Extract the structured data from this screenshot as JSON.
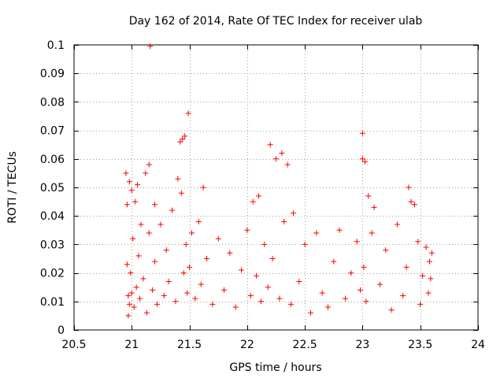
{
  "chart_data": {
    "type": "scatter",
    "title": "Day 162 of 2014, Rate Of TEC Index for receiver ulab",
    "xlabel": "GPS time / hours",
    "ylabel": "ROTI / TECUs",
    "xlim": [
      20.5,
      24
    ],
    "ylim": [
      0,
      0.1
    ],
    "xticks": [
      20.5,
      21,
      21.5,
      22,
      22.5,
      23,
      23.5,
      24
    ],
    "xtick_labels": [
      "20.5",
      "21",
      "21.5",
      "22",
      "22.5",
      "23",
      "23.5",
      "24"
    ],
    "yticks": [
      0,
      0.01,
      0.02,
      0.03,
      0.04,
      0.05,
      0.06,
      0.07,
      0.08,
      0.09,
      0.1
    ],
    "ytick_labels": [
      "0",
      "0.01",
      "0.02",
      "0.03",
      "0.04",
      "0.05",
      "0.06",
      "0.07",
      "0.08",
      "0.09",
      "0.1"
    ],
    "grid": true,
    "marker": "+",
    "colors": {
      "series": "#ff0000",
      "grid": "#a0a0a0",
      "axis": "#000000"
    },
    "series": [
      {
        "name": "ROTI",
        "x": [
          20.95,
          20.96,
          20.96,
          20.97,
          20.97,
          20.98,
          20.98,
          20.99,
          21.0,
          21.0,
          21.01,
          21.02,
          21.03,
          21.04,
          21.05,
          21.06,
          21.07,
          21.08,
          21.1,
          21.12,
          21.13,
          21.15,
          21.15,
          21.16,
          21.18,
          21.2,
          21.2,
          21.22,
          21.25,
          21.28,
          21.3,
          21.32,
          21.35,
          21.38,
          21.4,
          21.42,
          21.43,
          21.44,
          21.45,
          21.46,
          21.47,
          21.48,
          21.49,
          21.5,
          21.52,
          21.55,
          21.58,
          21.6,
          21.62,
          21.65,
          21.7,
          21.75,
          21.8,
          21.85,
          21.9,
          21.95,
          22.0,
          22.03,
          22.05,
          22.08,
          22.1,
          22.12,
          22.15,
          22.18,
          22.2,
          22.22,
          22.25,
          22.28,
          22.3,
          22.32,
          22.35,
          22.38,
          22.4,
          22.45,
          22.5,
          22.55,
          22.6,
          22.65,
          22.7,
          22.75,
          22.8,
          22.85,
          22.9,
          22.95,
          22.98,
          23.0,
          23.0,
          23.01,
          23.02,
          23.03,
          23.05,
          23.08,
          23.1,
          23.15,
          23.2,
          23.25,
          23.3,
          23.35,
          23.38,
          23.4,
          23.42,
          23.45,
          23.48,
          23.5,
          23.52,
          23.55,
          23.57,
          23.58,
          23.59,
          23.6
        ],
        "y": [
          0.055,
          0.044,
          0.023,
          0.012,
          0.005,
          0.052,
          0.009,
          0.02,
          0.049,
          0.013,
          0.032,
          0.008,
          0.045,
          0.015,
          0.051,
          0.026,
          0.011,
          0.037,
          0.018,
          0.055,
          0.006,
          0.058,
          0.034,
          0.0995,
          0.014,
          0.044,
          0.024,
          0.009,
          0.037,
          0.012,
          0.028,
          0.017,
          0.042,
          0.01,
          0.053,
          0.066,
          0.048,
          0.067,
          0.02,
          0.068,
          0.03,
          0.013,
          0.076,
          0.022,
          0.034,
          0.011,
          0.038,
          0.016,
          0.05,
          0.025,
          0.009,
          0.032,
          0.014,
          0.027,
          0.008,
          0.021,
          0.035,
          0.012,
          0.045,
          0.019,
          0.047,
          0.01,
          0.03,
          0.015,
          0.065,
          0.025,
          0.06,
          0.011,
          0.062,
          0.038,
          0.058,
          0.009,
          0.041,
          0.017,
          0.03,
          0.006,
          0.034,
          0.013,
          0.008,
          0.024,
          0.035,
          0.011,
          0.02,
          0.031,
          0.014,
          0.069,
          0.06,
          0.022,
          0.059,
          0.01,
          0.047,
          0.034,
          0.043,
          0.016,
          0.028,
          0.007,
          0.037,
          0.012,
          0.022,
          0.05,
          0.045,
          0.044,
          0.031,
          0.009,
          0.019,
          0.029,
          0.013,
          0.024,
          0.018,
          0.027
        ]
      }
    ]
  }
}
